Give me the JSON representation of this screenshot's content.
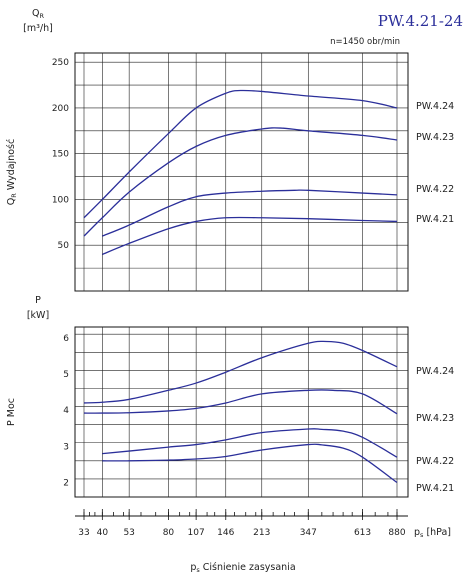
{
  "title": "PW.4.21-24",
  "speed_note": "n=1450 obr/min",
  "chart_data": [
    {
      "type": "line",
      "unit_symbol": "Q",
      "unit_subscript": "R",
      "unit": "[m³/h]",
      "ylabel_symbol": "Q",
      "ylabel_subscript": "R",
      "ylabel_text": "Wydajność",
      "ylim": [
        0,
        260
      ],
      "yticks": [
        50,
        100,
        150,
        200,
        250
      ],
      "x_ticks": [
        33,
        40,
        53,
        80,
        107,
        146,
        213,
        347,
        613,
        880
      ],
      "series": [
        {
          "name": "PW.4.24",
          "points": [
            [
              33,
              80
            ],
            [
              40,
              100
            ],
            [
              53,
              130
            ],
            [
              80,
              172
            ],
            [
              107,
              200
            ],
            [
              146,
              216
            ],
            [
              170,
              219
            ],
            [
              213,
              218
            ],
            [
              347,
              213
            ],
            [
              613,
              208
            ],
            [
              880,
              200
            ]
          ]
        },
        {
          "name": "PW.4.23",
          "points": [
            [
              33,
              60
            ],
            [
              40,
              80
            ],
            [
              53,
              108
            ],
            [
              80,
              140
            ],
            [
              107,
              158
            ],
            [
              146,
              170
            ],
            [
              213,
              177
            ],
            [
              260,
              178
            ],
            [
              347,
              175
            ],
            [
              613,
              170
            ],
            [
              880,
              165
            ]
          ]
        },
        {
          "name": "PW.4.22",
          "points": [
            [
              40,
              60
            ],
            [
              53,
              72
            ],
            [
              80,
              92
            ],
            [
              107,
              103
            ],
            [
              146,
              107
            ],
            [
              213,
              109
            ],
            [
              300,
              110
            ],
            [
              347,
              110
            ],
            [
              613,
              107
            ],
            [
              880,
              105
            ]
          ]
        },
        {
          "name": "PW.4.21",
          "points": [
            [
              40,
              40
            ],
            [
              53,
              52
            ],
            [
              80,
              68
            ],
            [
              107,
              76
            ],
            [
              146,
              80
            ],
            [
              213,
              80
            ],
            [
              347,
              79
            ],
            [
              613,
              77
            ],
            [
              880,
              76
            ]
          ]
        }
      ]
    },
    {
      "type": "line",
      "unit_symbol": "P",
      "unit_subscript": "",
      "unit": "[kW]",
      "ylabel_symbol": "P",
      "ylabel_subscript": "",
      "ylabel_text": "Moc",
      "ylim": [
        1.6,
        6.3
      ],
      "yticks": [
        2,
        3,
        4,
        5,
        6
      ],
      "x_ticks": [
        33,
        40,
        53,
        80,
        107,
        146,
        213,
        347,
        613,
        880
      ],
      "series": [
        {
          "name": "PW.4.24",
          "points": [
            [
              33,
              4.2
            ],
            [
              40,
              4.22
            ],
            [
              53,
              4.3
            ],
            [
              80,
              4.55
            ],
            [
              107,
              4.75
            ],
            [
              146,
              5.05
            ],
            [
              213,
              5.45
            ],
            [
              347,
              5.85
            ],
            [
              420,
              5.9
            ],
            [
              500,
              5.85
            ],
            [
              613,
              5.65
            ],
            [
              880,
              5.2
            ]
          ]
        },
        {
          "name": "PW.4.23",
          "points": [
            [
              33,
              3.92
            ],
            [
              40,
              3.92
            ],
            [
              53,
              3.93
            ],
            [
              80,
              3.98
            ],
            [
              107,
              4.05
            ],
            [
              146,
              4.2
            ],
            [
              213,
              4.45
            ],
            [
              347,
              4.55
            ],
            [
              450,
              4.55
            ],
            [
              613,
              4.45
            ],
            [
              880,
              3.9
            ]
          ]
        },
        {
          "name": "PW.4.22",
          "points": [
            [
              40,
              2.8
            ],
            [
              53,
              2.87
            ],
            [
              80,
              2.98
            ],
            [
              107,
              3.05
            ],
            [
              146,
              3.18
            ],
            [
              213,
              3.38
            ],
            [
              347,
              3.48
            ],
            [
              400,
              3.47
            ],
            [
              500,
              3.42
            ],
            [
              613,
              3.25
            ],
            [
              880,
              2.7
            ]
          ]
        },
        {
          "name": "PW.4.21",
          "points": [
            [
              40,
              2.6
            ],
            [
              53,
              2.6
            ],
            [
              80,
              2.62
            ],
            [
              107,
              2.65
            ],
            [
              146,
              2.72
            ],
            [
              213,
              2.9
            ],
            [
              347,
              3.05
            ],
            [
              400,
              3.04
            ],
            [
              500,
              2.95
            ],
            [
              613,
              2.7
            ],
            [
              880,
              2.0
            ]
          ]
        }
      ]
    }
  ],
  "xaxis": {
    "symbol": "p",
    "subscript": "s",
    "unit": "[hPa]",
    "label": "Ciśnienie zasysania"
  }
}
